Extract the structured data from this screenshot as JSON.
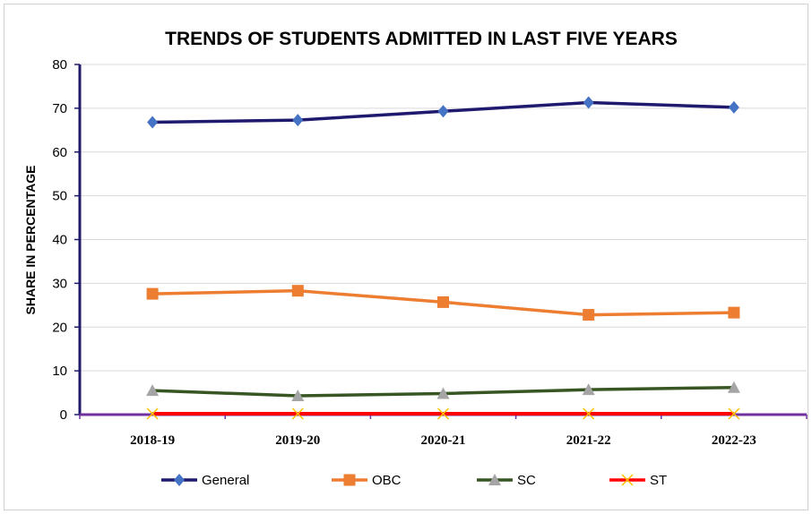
{
  "chart_data": {
    "type": "line",
    "title": "TRENDS OF STUDENTS ADMITTED IN LAST FIVE YEARS",
    "xlabel": "",
    "ylabel": "SHARE IN PERCENTAGE",
    "categories": [
      "2018-19",
      "2019-20",
      "2020-21",
      "2021-22",
      "2022-23"
    ],
    "ylim": [
      0,
      80
    ],
    "yticks": [
      0,
      10,
      20,
      30,
      40,
      50,
      60,
      70,
      80
    ],
    "grid": true,
    "legend_position": "bottom",
    "series": [
      {
        "name": "General",
        "values": [
          66.8,
          67.3,
          69.3,
          71.3,
          70.2
        ],
        "color": "#1f1a6e",
        "marker_color": "#4472c4",
        "marker": "diamond"
      },
      {
        "name": "OBC",
        "values": [
          27.6,
          28.3,
          25.7,
          22.8,
          23.3
        ],
        "color": "#ed7d31",
        "marker_color": "#ed7d31",
        "marker": "square"
      },
      {
        "name": "SC",
        "values": [
          5.5,
          4.3,
          4.8,
          5.7,
          6.2
        ],
        "color": "#375623",
        "marker_color": "#a5a5a5",
        "marker": "triangle"
      },
      {
        "name": "ST",
        "values": [
          0.2,
          0.2,
          0.2,
          0.2,
          0.2
        ],
        "color": "#ff0000",
        "marker_color": "#ffc000",
        "marker": "x"
      }
    ],
    "axis_colors": {
      "y_axis": "#1f1a6e",
      "x_axis": "#7030a0"
    }
  }
}
